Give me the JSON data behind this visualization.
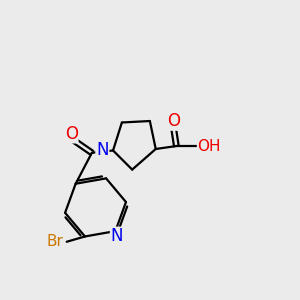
{
  "bg_color": "#ebebeb",
  "atom_colors": {
    "C": "#000000",
    "N": "#0000ee",
    "O": "#ee0000",
    "Br": "#cc7700",
    "H": "#444444"
  },
  "bond_color": "#000000",
  "bond_width": 1.6,
  "font_size": 12
}
